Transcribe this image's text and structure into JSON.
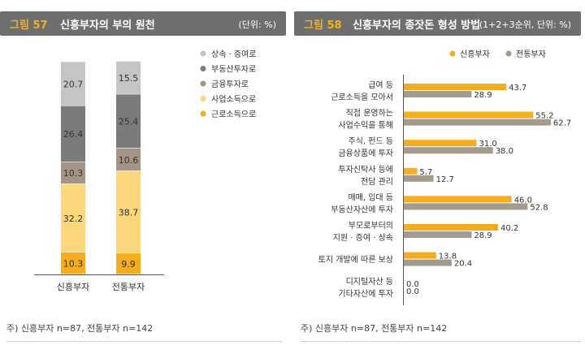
{
  "colors": {
    "header_bg": "#6e6e6e",
    "fig_label": "#f5b21c",
    "series_new": "#f5ad1e",
    "series_trad": "#a59a8e",
    "inherit": "#c5c5c7",
    "realestate": "#7a7b7d",
    "finance": "#a39485",
    "business": "#fbd67a",
    "labor": "#f5ad1e"
  },
  "left": {
    "fig": "그림 57",
    "title": "신흥부자의 부의 원천",
    "unit": "(단위: %)",
    "note": "주) 신흥부자 n=87, 전통부자 n=142",
    "chart_data": {
      "type": "bar",
      "stacked": true,
      "title": "신흥부자의 부의 원천",
      "categories": [
        "신흥부자",
        "전통부자"
      ],
      "series": [
        {
          "name": "근로소득으로",
          "color": "#f5ad1e",
          "values": [
            10.3,
            9.9
          ]
        },
        {
          "name": "사업소득으로",
          "color": "#fbd67a",
          "values": [
            32.2,
            38.7
          ]
        },
        {
          "name": "금융투자로",
          "color": "#a39485",
          "values": [
            10.3,
            10.6
          ]
        },
        {
          "name": "부동산투자로",
          "color": "#7a7b7d",
          "values": [
            26.4,
            25.4
          ]
        },
        {
          "name": "상속 · 증여로",
          "color": "#c5c5c7",
          "values": [
            20.7,
            15.5
          ]
        }
      ],
      "legend": [
        "상속 · 증여로",
        "부동산투자로",
        "금융투자로",
        "사업소득으로",
        "근로소득으로"
      ],
      "ylim": [
        0,
        100
      ]
    }
  },
  "right": {
    "fig": "그림 58",
    "title": "신흥부자의 종잣돈 형성 방법",
    "unit": "(1+2+3순위, 단위: %)",
    "note": "주) 신흥부자 n=87, 전통부자 n=142",
    "chart_data": {
      "type": "bar",
      "orientation": "horizontal",
      "title": "신흥부자의 종잣돈 형성 방법",
      "categories": [
        [
          "급여 등",
          "근로소득을 모아서"
        ],
        [
          "직접 운영하는",
          "사업수익을 통해"
        ],
        [
          "주식, 펀드 등",
          "금융상품에 투자"
        ],
        [
          "투자신탁사 등에",
          "전담 관리"
        ],
        [
          "매매, 임대 등",
          "부동산자산에 투자"
        ],
        [
          "부모로부터의",
          "지원 · 증여 · 상속"
        ],
        [
          "토지 개발에 따른 보상"
        ],
        [
          "디지털자산 등",
          "기타자산에 투자"
        ]
      ],
      "series": [
        {
          "name": "신흥부자",
          "color": "#f5ad1e",
          "values": [
            43.7,
            55.2,
            31.0,
            5.7,
            46.0,
            40.2,
            13.8,
            0.0
          ]
        },
        {
          "name": "전통부자",
          "color": "#a59a8e",
          "values": [
            28.9,
            62.7,
            38.0,
            12.7,
            52.8,
            28.9,
            20.4,
            0.0
          ]
        }
      ],
      "legend": [
        "신흥부자",
        "전통부자"
      ],
      "xlim": [
        0,
        70
      ]
    }
  }
}
